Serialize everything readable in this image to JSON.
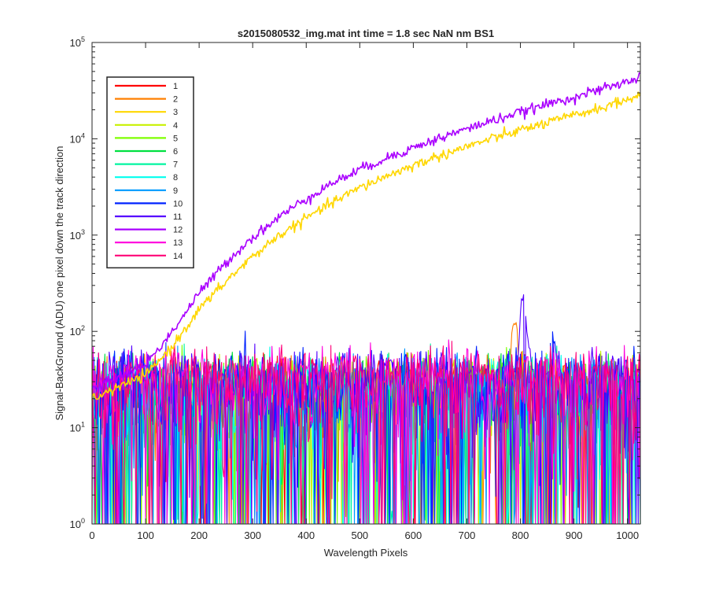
{
  "chart_data": {
    "type": "line",
    "title": "s2015080532_img.mat int time = 1.8 sec  NaN nm BS1",
    "xlabel": "Wavelength Pixels",
    "ylabel": "Signal-BackGround (ADU) one pixel down the track direction",
    "xlim": [
      0,
      1024
    ],
    "ylim": [
      1,
      100000
    ],
    "yscale": "log",
    "grid": false,
    "legend_position": "top-left",
    "x_ticks": [
      0,
      100,
      200,
      300,
      400,
      500,
      600,
      700,
      800,
      900,
      1000
    ],
    "y_ticks": [
      {
        "value": 1,
        "base": "10",
        "exp": "0"
      },
      {
        "value": 10,
        "base": "10",
        "exp": "1"
      },
      {
        "value": 100,
        "base": "10",
        "exp": "2"
      },
      {
        "value": 1000,
        "base": "10",
        "exp": "3"
      },
      {
        "value": 10000,
        "base": "10",
        "exp": "4"
      },
      {
        "value": 100000,
        "base": "10",
        "exp": "5"
      }
    ],
    "series": [
      {
        "name": "1",
        "color": "#ff0000",
        "type": "noise",
        "level": 25,
        "spike": null
      },
      {
        "name": "2",
        "color": "#ff7f00",
        "type": "noise",
        "level": 25,
        "spike": {
          "x": 790,
          "peak": 100
        }
      },
      {
        "name": "3",
        "color": "#ffd700",
        "type": "signal",
        "points": [
          [
            0,
            20
          ],
          [
            100,
            35
          ],
          [
            150,
            70
          ],
          [
            200,
            170
          ],
          [
            250,
            330
          ],
          [
            300,
            600
          ],
          [
            350,
            1000
          ],
          [
            400,
            1500
          ],
          [
            450,
            2200
          ],
          [
            500,
            3100
          ],
          [
            550,
            4100
          ],
          [
            600,
            5300
          ],
          [
            650,
            6700
          ],
          [
            700,
            8300
          ],
          [
            750,
            10200
          ],
          [
            800,
            12300
          ],
          [
            850,
            14700
          ],
          [
            900,
            17500
          ],
          [
            950,
            21000
          ],
          [
            1000,
            25500
          ],
          [
            1024,
            29000
          ]
        ]
      },
      {
        "name": "4",
        "color": "#c8f000",
        "type": "noise",
        "level": 25,
        "spike": null
      },
      {
        "name": "5",
        "color": "#7fff00",
        "type": "noise",
        "level": 25,
        "spike": null
      },
      {
        "name": "6",
        "color": "#00e040",
        "type": "noise",
        "level": 25,
        "spike": null
      },
      {
        "name": "7",
        "color": "#00f5a0",
        "type": "noise",
        "level": 25,
        "spike": null
      },
      {
        "name": "8",
        "color": "#00ffee",
        "type": "noise",
        "level": 25,
        "spike": null
      },
      {
        "name": "9",
        "color": "#0099ff",
        "type": "noise",
        "level": 25,
        "spike": null
      },
      {
        "name": "10",
        "color": "#0022ff",
        "type": "noise",
        "level": 30,
        "spike": {
          "x": 860,
          "peak": 60
        }
      },
      {
        "name": "11",
        "color": "#5500ff",
        "type": "noise",
        "level": 30,
        "spike": {
          "x": 805,
          "peak": 200
        }
      },
      {
        "name": "12",
        "color": "#aa00ff",
        "type": "signal",
        "points": [
          [
            0,
            25
          ],
          [
            100,
            45
          ],
          [
            150,
            100
          ],
          [
            200,
            250
          ],
          [
            250,
            520
          ],
          [
            300,
            950
          ],
          [
            350,
            1550
          ],
          [
            400,
            2400
          ],
          [
            450,
            3500
          ],
          [
            500,
            4800
          ],
          [
            550,
            6300
          ],
          [
            600,
            8100
          ],
          [
            650,
            10200
          ],
          [
            700,
            12700
          ],
          [
            750,
            15600
          ],
          [
            800,
            18900
          ],
          [
            850,
            22800
          ],
          [
            900,
            27200
          ],
          [
            950,
            32500
          ],
          [
            1000,
            39000
          ],
          [
            1024,
            45000
          ]
        ]
      },
      {
        "name": "13",
        "color": "#ff00dd",
        "type": "noise",
        "level": 30,
        "spike": null
      },
      {
        "name": "14",
        "color": "#ff0077",
        "type": "noise",
        "level": 30,
        "spike": null
      }
    ]
  }
}
